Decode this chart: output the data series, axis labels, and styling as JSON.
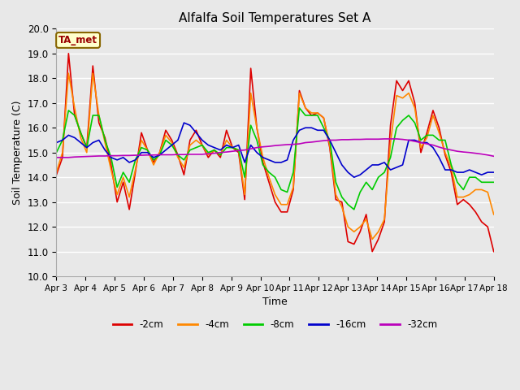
{
  "title": "Alfalfa Soil Temperatures Set A",
  "xlabel": "Time",
  "ylabel": "Soil Temperature (C)",
  "ylim": [
    10.0,
    20.0
  ],
  "yticks": [
    10.0,
    11.0,
    12.0,
    13.0,
    14.0,
    15.0,
    16.0,
    17.0,
    18.0,
    19.0,
    20.0
  ],
  "xtick_labels": [
    "Apr 3",
    "Apr 4",
    "Apr 5",
    "Apr 6",
    "Apr 7",
    "Apr 8",
    "Apr 9",
    "Apr 10",
    "Apr 11",
    "Apr 12",
    "Apr 13",
    "Apr 14",
    "Apr 15",
    "Apr 16",
    "Apr 17",
    "Apr 18"
  ],
  "plot_bg": "#e8e8e8",
  "fig_bg": "#e8e8e8",
  "grid_color": "#ffffff",
  "annotation_text": "TA_met",
  "annotation_bg": "#ffffcc",
  "annotation_border": "#886600",
  "annotation_text_color": "#990000",
  "colors": {
    "-2cm": "#dd0000",
    "-4cm": "#ff8800",
    "-8cm": "#00cc00",
    "-16cm": "#0000cc",
    "-32cm": "#bb00bb"
  },
  "series": {
    "-2cm": [
      14.1,
      14.8,
      19.0,
      16.5,
      15.8,
      15.2,
      18.5,
      16.2,
      15.6,
      14.5,
      13.0,
      13.8,
      12.7,
      14.2,
      15.8,
      15.1,
      14.6,
      15.0,
      15.9,
      15.5,
      14.9,
      14.1,
      15.5,
      15.9,
      15.3,
      14.8,
      15.1,
      14.8,
      15.9,
      15.2,
      15.0,
      13.1,
      18.4,
      16.0,
      14.6,
      13.8,
      13.0,
      12.6,
      12.6,
      13.5,
      17.5,
      16.8,
      16.5,
      16.6,
      16.4,
      15.2,
      13.1,
      13.0,
      11.4,
      11.3,
      11.8,
      12.5,
      11.0,
      11.5,
      12.2,
      16.1,
      17.9,
      17.5,
      17.9,
      17.0,
      15.0,
      15.8,
      16.7,
      16.0,
      14.9,
      14.2,
      12.9,
      13.1,
      12.9,
      12.6,
      12.2,
      12.0,
      11.0
    ],
    "-4cm": [
      14.2,
      15.0,
      18.2,
      16.8,
      15.6,
      15.0,
      18.2,
      16.5,
      15.4,
      14.3,
      13.3,
      14.0,
      13.2,
      14.3,
      15.5,
      15.1,
      14.5,
      15.0,
      15.7,
      15.4,
      14.8,
      14.4,
      15.3,
      15.5,
      15.3,
      14.9,
      15.1,
      14.9,
      15.5,
      15.2,
      15.1,
      13.3,
      17.4,
      16.0,
      14.8,
      14.0,
      13.3,
      12.9,
      12.9,
      13.6,
      17.4,
      16.8,
      16.6,
      16.6,
      16.4,
      15.3,
      13.3,
      12.8,
      12.0,
      11.8,
      12.0,
      12.3,
      11.5,
      11.8,
      12.3,
      15.4,
      17.3,
      17.2,
      17.4,
      16.8,
      15.2,
      15.6,
      16.5,
      15.8,
      15.0,
      14.4,
      13.2,
      13.2,
      13.3,
      13.5,
      13.5,
      13.4,
      12.5
    ],
    "-8cm": [
      15.0,
      15.5,
      16.7,
      16.5,
      15.8,
      15.2,
      16.5,
      16.5,
      15.5,
      14.8,
      13.6,
      14.2,
      13.8,
      14.7,
      15.2,
      15.1,
      14.7,
      14.9,
      15.5,
      15.3,
      14.9,
      14.7,
      15.1,
      15.2,
      15.3,
      15.0,
      15.1,
      14.9,
      15.2,
      15.2,
      15.1,
      14.0,
      16.1,
      15.5,
      14.5,
      14.2,
      14.0,
      13.5,
      13.4,
      14.2,
      16.8,
      16.5,
      16.5,
      16.5,
      16.0,
      15.5,
      13.8,
      13.2,
      12.9,
      12.7,
      13.4,
      13.8,
      13.5,
      14.0,
      14.2,
      14.8,
      16.0,
      16.3,
      16.5,
      16.2,
      15.5,
      15.7,
      15.7,
      15.5,
      15.5,
      14.5,
      13.8,
      13.5,
      14.0,
      14.0,
      13.8,
      13.8,
      13.8
    ],
    "-16cm": [
      15.4,
      15.5,
      15.7,
      15.6,
      15.4,
      15.2,
      15.4,
      15.5,
      15.1,
      14.8,
      14.7,
      14.8,
      14.6,
      14.7,
      15.0,
      15.0,
      14.8,
      14.9,
      15.1,
      15.3,
      15.5,
      16.2,
      16.1,
      15.8,
      15.5,
      15.3,
      15.2,
      15.1,
      15.3,
      15.2,
      15.3,
      14.6,
      15.3,
      15.0,
      14.8,
      14.7,
      14.6,
      14.6,
      14.7,
      15.5,
      15.9,
      16.0,
      16.0,
      15.9,
      15.9,
      15.5,
      15.0,
      14.5,
      14.2,
      14.0,
      14.1,
      14.3,
      14.5,
      14.5,
      14.6,
      14.3,
      14.4,
      14.5,
      15.5,
      15.5,
      15.4,
      15.4,
      15.2,
      14.8,
      14.3,
      14.3,
      14.2,
      14.2,
      14.3,
      14.2,
      14.1,
      14.2,
      14.2
    ],
    "-32cm": [
      14.8,
      14.8,
      14.8,
      14.82,
      14.83,
      14.84,
      14.85,
      14.86,
      14.86,
      14.87,
      14.87,
      14.88,
      14.88,
      14.89,
      14.89,
      14.9,
      14.9,
      14.91,
      14.91,
      14.91,
      14.92,
      14.92,
      14.93,
      14.93,
      14.93,
      14.95,
      14.97,
      15.0,
      15.02,
      15.05,
      15.08,
      15.1,
      15.15,
      15.2,
      15.23,
      15.25,
      15.28,
      15.3,
      15.32,
      15.33,
      15.35,
      15.4,
      15.42,
      15.45,
      15.48,
      15.5,
      15.5,
      15.52,
      15.52,
      15.53,
      15.53,
      15.54,
      15.54,
      15.54,
      15.55,
      15.55,
      15.55,
      15.53,
      15.5,
      15.45,
      15.4,
      15.35,
      15.3,
      15.22,
      15.15,
      15.1,
      15.05,
      15.02,
      15.0,
      14.97,
      14.94,
      14.9,
      14.85
    ]
  }
}
